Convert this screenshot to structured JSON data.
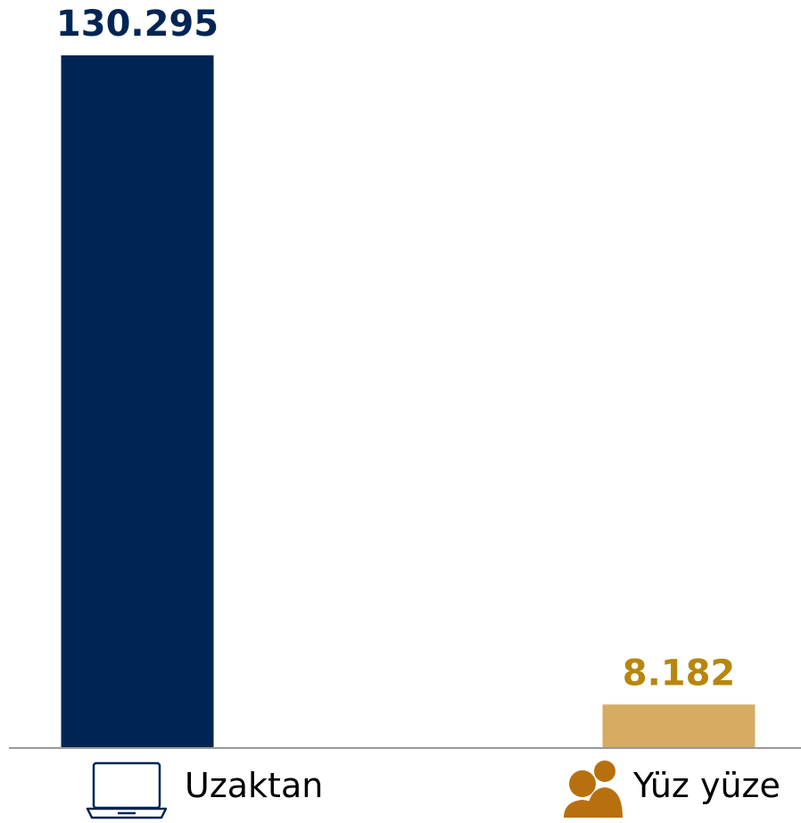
{
  "chart_data": {
    "type": "bar",
    "categories": [
      "Uzaktan",
      "Yüz yüze"
    ],
    "values": [
      130295,
      8182
    ],
    "value_labels": [
      "130.295",
      "8.182"
    ],
    "title": "",
    "xlabel": "",
    "ylabel": "",
    "ylim": [
      0,
      130295
    ],
    "grid": false,
    "legend": "none",
    "colors": {
      "bars": [
        "#002554",
        "#D6AC63"
      ],
      "value_labels": [
        "#002554",
        "#B8860B"
      ],
      "icons": [
        "#002554",
        "#B8700F"
      ],
      "axis": "#999999"
    },
    "category_icons": [
      "laptop-icon",
      "users-icon"
    ]
  }
}
